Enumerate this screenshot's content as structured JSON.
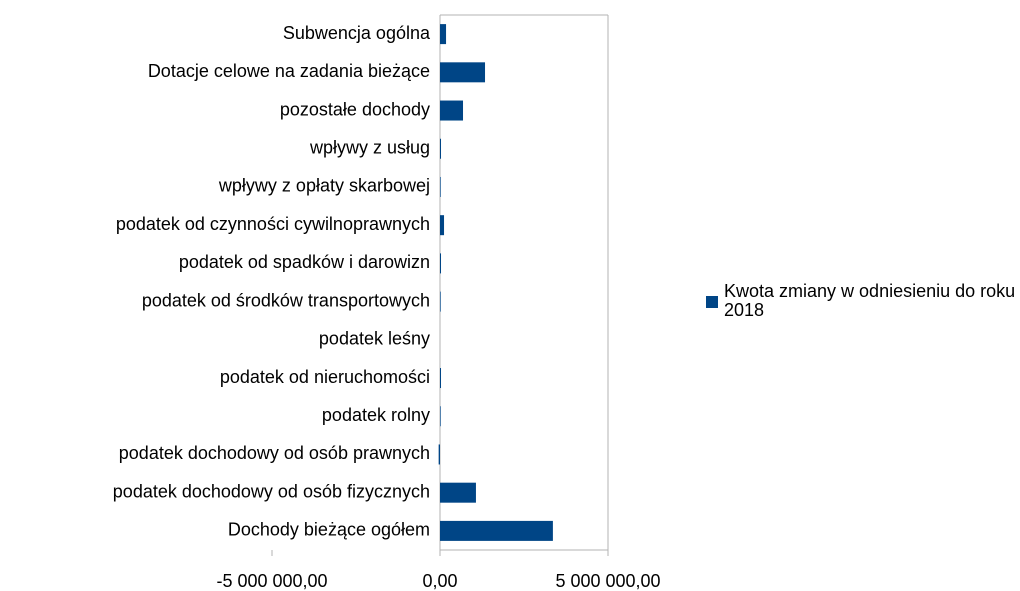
{
  "chart_data": {
    "type": "hbar",
    "categories": [
      "Subwencja ogólna",
      "Dotacje celowe na zadania bieżące",
      "pozostałe dochody",
      "wpływy z usług",
      "wpływy z opłaty skarbowej",
      "podatek od czynności cywilnoprawnych",
      "podatek od spadków i darowizn",
      "podatek od środków transportowych",
      "podatek leśny",
      "podatek od nieruchomości",
      "podatek rolny",
      "podatek dochodowy od osób prawnych",
      "podatek dochodowy od osób fizycznych",
      "Dochody bieżące ogółem"
    ],
    "series": [
      {
        "name": "Kwota zmiany w odniesieniu do roku 2018",
        "color": "#004586",
        "values": [
          180000,
          1340000,
          685000,
          30000,
          20000,
          120000,
          30000,
          20000,
          0,
          30000,
          20000,
          -40000,
          1070000,
          3360000
        ]
      }
    ],
    "xlim": [
      -5000000,
      5000000
    ],
    "xticks": [
      {
        "value": -5000000,
        "label": "-5 000 000,00"
      },
      {
        "value": 0,
        "label": "0,00"
      },
      {
        "value": 5000000,
        "label": "5 000 000,00"
      }
    ],
    "grid": true,
    "legend": "right"
  }
}
